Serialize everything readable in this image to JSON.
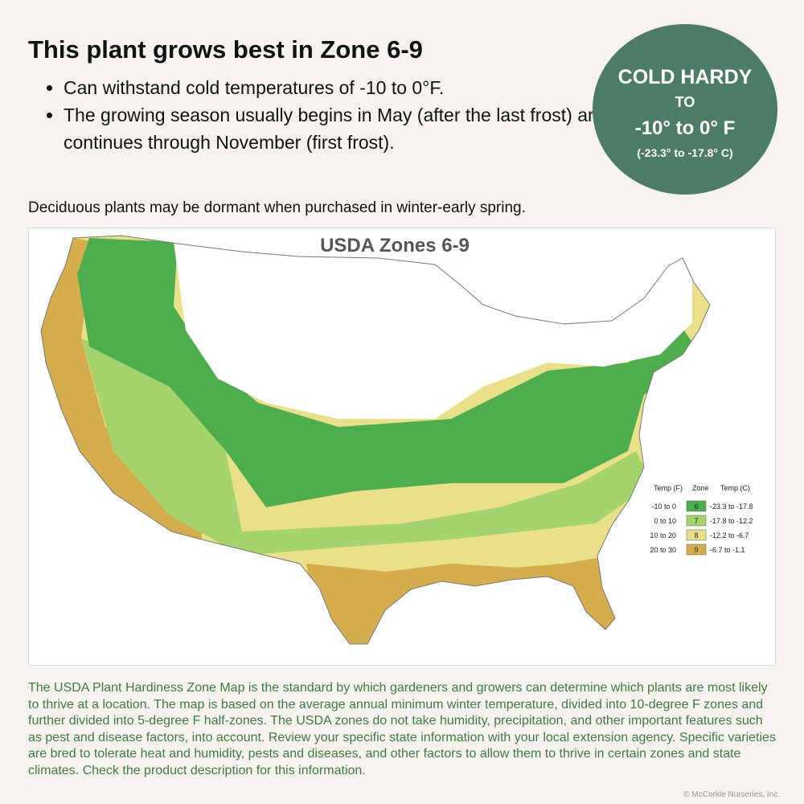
{
  "header": {
    "title": "This plant grows best in Zone 6-9",
    "bullets": [
      "Can withstand cold temperatures of -10 to 0°F.",
      "The growing season usually begins in May (after the last frost) and continues through November (first frost)."
    ]
  },
  "badge": {
    "line1": "COLD HARDY",
    "line2": "TO",
    "line3": "-10° to 0° F",
    "line4": "(-23.3° to -17.8° C)"
  },
  "note": "Deciduous plants may be dormant when purchased in winter-early spring.",
  "map": {
    "title": "USDA Zones 6-9",
    "legend": {
      "headers": [
        "Temp (F)",
        "Zone",
        "Temp (C)"
      ],
      "rows": [
        {
          "temp_f": "-10 to 0",
          "zone": "6",
          "temp_c": "-23.3 to -17.8",
          "color": "#4cae4c"
        },
        {
          "temp_f": "0 to 10",
          "zone": "7",
          "temp_c": "-17.8 to -12.2",
          "color": "#a6d46c"
        },
        {
          "temp_f": "10 to 20",
          "zone": "8",
          "temp_c": "-12.2 to -6.7",
          "color": "#ebe08a"
        },
        {
          "temp_f": "20 to 30",
          "zone": "9",
          "temp_c": "-6.7 to -1.1",
          "color": "#d6ad4c"
        }
      ]
    }
  },
  "footer": {
    "text": "The USDA Plant Hardiness Zone Map is the standard by which gardeners and growers can determine which plants are most likely to thrive at a location. The map is based on the average annual minimum winter temperature, divided into 10-degree F zones and further divided into 5-degree F half-zones. The USDA zones do not take humidity, precipitation, and other important features such as pest and disease factors, into account. Review your specific state information with your local extension agency. Specific varieties are bred to tolerate heat and humidity, pests and diseases, and other factors to allow them to thrive in certain zones and state climates. Check the product description for this information.",
    "copyright": "© McCorkle Nurseries, Inc."
  }
}
